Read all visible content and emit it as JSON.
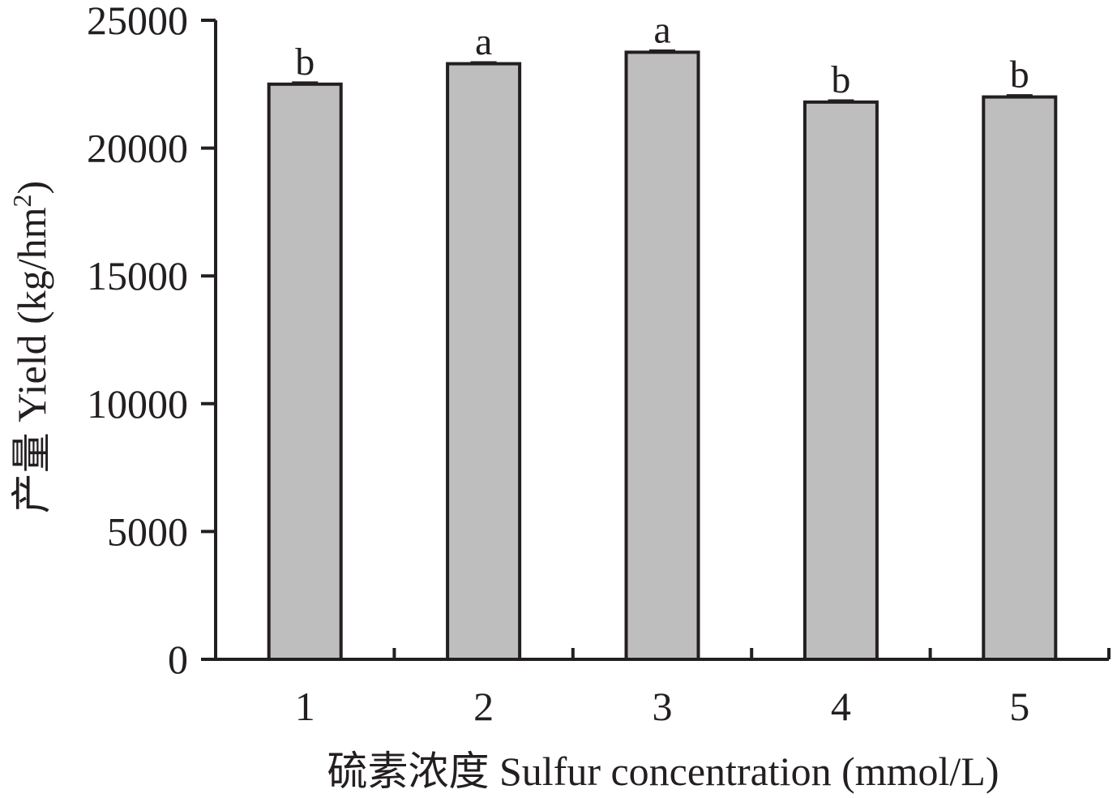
{
  "chart_data": {
    "type": "bar",
    "categories": [
      "1",
      "2",
      "3",
      "4",
      "5"
    ],
    "values": [
      22500,
      23300,
      23750,
      21800,
      22000
    ],
    "errors": [
      60,
      50,
      60,
      60,
      60
    ],
    "significance": [
      "b",
      "a",
      "a",
      "b",
      "b"
    ],
    "xlabel": "硫素浓度 Sulfur concentration (mmol/L)",
    "ylabel": {
      "main": "产量 Yield (kg/hm",
      "superscript": "2",
      "end": ")"
    },
    "ylim": [
      0,
      25000
    ],
    "yticks": [
      "0",
      "5000",
      "10000",
      "15000",
      "20000",
      "25000"
    ],
    "grid": false,
    "colors": {
      "bar_fill": "#bebebe",
      "bar_stroke": "#231f20",
      "axis": "#231f20",
      "text": "#231f20"
    }
  }
}
